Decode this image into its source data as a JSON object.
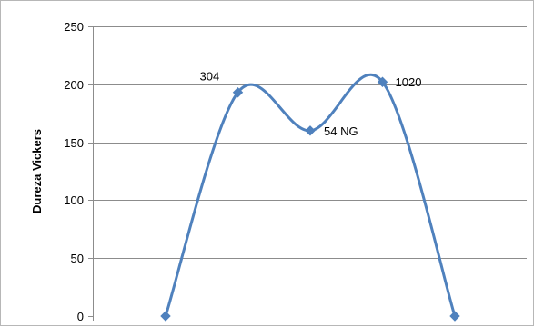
{
  "chart_data": {
    "type": "line",
    "smooth": true,
    "ylabel": "Dureza Vickers",
    "xlabel": "",
    "ylim": [
      0,
      250
    ],
    "yticks": [
      0,
      50,
      100,
      150,
      200,
      250
    ],
    "grid": true,
    "legend": "none",
    "line_color": "#4f81bd",
    "x": [
      1,
      2,
      3,
      4,
      5
    ],
    "series": [
      {
        "values": [
          0,
          193,
          160,
          202,
          0
        ],
        "labels": [
          "",
          "304",
          "54 NG",
          "1020",
          ""
        ]
      }
    ]
  }
}
